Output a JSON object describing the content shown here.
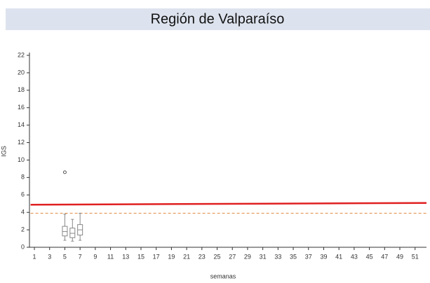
{
  "chart_data": {
    "type": "box",
    "title": "Región de Valparaíso",
    "xlabel": "semanas",
    "ylabel": "IGS",
    "xlim": [
      0.5,
      52.5
    ],
    "ylim": [
      0,
      22
    ],
    "xticks": [
      1,
      3,
      5,
      7,
      9,
      11,
      13,
      15,
      17,
      19,
      21,
      23,
      25,
      27,
      29,
      31,
      33,
      35,
      37,
      39,
      41,
      43,
      45,
      47,
      49,
      51
    ],
    "yticks": [
      0,
      2,
      4,
      6,
      8,
      10,
      12,
      14,
      16,
      18,
      20,
      22
    ],
    "box_color": "#888888",
    "boxes": [
      {
        "x": 5,
        "min": 0.8,
        "q1": 1.3,
        "median": 1.8,
        "q3": 2.4,
        "max": 3.8,
        "outliers": [
          8.6
        ]
      },
      {
        "x": 6,
        "min": 0.7,
        "q1": 1.1,
        "median": 1.6,
        "q3": 2.2,
        "max": 3.2,
        "outliers": []
      },
      {
        "x": 7,
        "min": 0.8,
        "q1": 1.4,
        "median": 2.0,
        "q3": 2.6,
        "max": 3.9,
        "outliers": []
      }
    ],
    "lines": [
      {
        "x": [
          0.5,
          52.5
        ],
        "values": [
          4.88,
          5.08
        ],
        "color": "#e02020",
        "dashed": false
      },
      {
        "x": [
          0.5,
          52.5
        ],
        "values": [
          3.9,
          3.9
        ],
        "color": "#e08a40",
        "dashed": true
      }
    ]
  }
}
